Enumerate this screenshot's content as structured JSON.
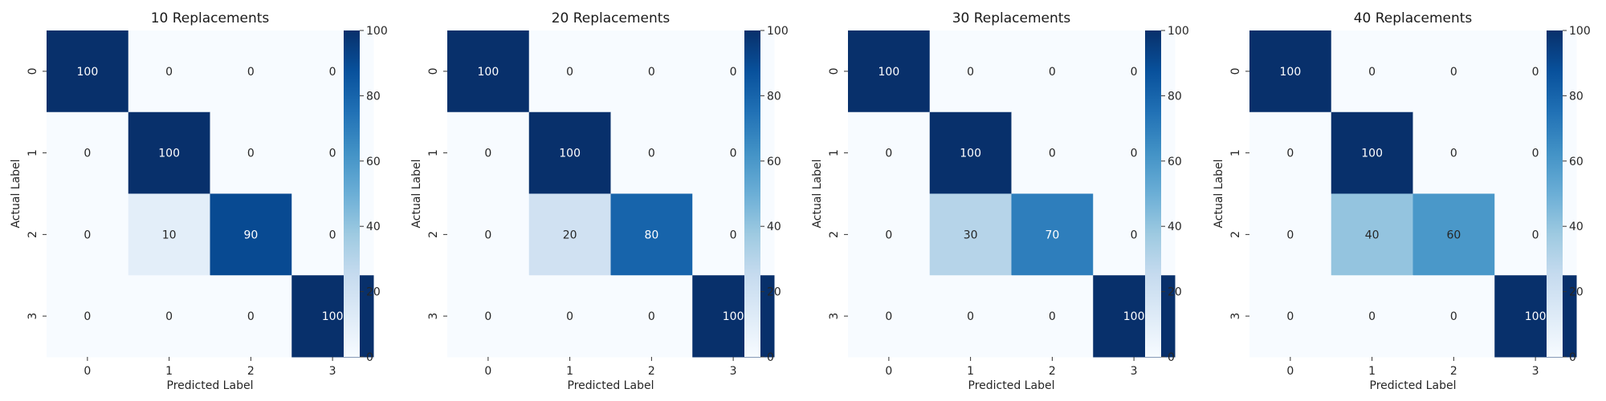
{
  "chart_data": [
    {
      "type": "heatmap",
      "title": "10 Replacements",
      "xlabel": "Predicted Label",
      "ylabel": "Actual Label",
      "x_categories": [
        "0",
        "1",
        "2",
        "3"
      ],
      "y_categories": [
        "0",
        "1",
        "2",
        "3"
      ],
      "values": [
        [
          100,
          0,
          0,
          0
        ],
        [
          0,
          100,
          0,
          0
        ],
        [
          0,
          10,
          90,
          0
        ],
        [
          0,
          0,
          0,
          100
        ]
      ],
      "colorscale": "Blues",
      "vmin": 0,
      "vmax": 100,
      "colorbar_ticks": [
        "0",
        "20",
        "40",
        "60",
        "80",
        "100"
      ]
    },
    {
      "type": "heatmap",
      "title": "20 Replacements",
      "xlabel": "Predicted Label",
      "ylabel": "Actual Label",
      "x_categories": [
        "0",
        "1",
        "2",
        "3"
      ],
      "y_categories": [
        "0",
        "1",
        "2",
        "3"
      ],
      "values": [
        [
          100,
          0,
          0,
          0
        ],
        [
          0,
          100,
          0,
          0
        ],
        [
          0,
          20,
          80,
          0
        ],
        [
          0,
          0,
          0,
          100
        ]
      ],
      "colorscale": "Blues",
      "vmin": 0,
      "vmax": 100,
      "colorbar_ticks": [
        "0",
        "20",
        "40",
        "60",
        "80",
        "100"
      ]
    },
    {
      "type": "heatmap",
      "title": "30 Replacements",
      "xlabel": "Predicted Label",
      "ylabel": "Actual Label",
      "x_categories": [
        "0",
        "1",
        "2",
        "3"
      ],
      "y_categories": [
        "0",
        "1",
        "2",
        "3"
      ],
      "values": [
        [
          100,
          0,
          0,
          0
        ],
        [
          0,
          100,
          0,
          0
        ],
        [
          0,
          30,
          70,
          0
        ],
        [
          0,
          0,
          0,
          100
        ]
      ],
      "colorscale": "Blues",
      "vmin": 0,
      "vmax": 100,
      "colorbar_ticks": [
        "0",
        "20",
        "40",
        "60",
        "80",
        "100"
      ]
    },
    {
      "type": "heatmap",
      "title": "40 Replacements",
      "xlabel": "Predicted Label",
      "ylabel": "Actual Label",
      "x_categories": [
        "0",
        "1",
        "2",
        "3"
      ],
      "y_categories": [
        "0",
        "1",
        "2",
        "3"
      ],
      "values": [
        [
          100,
          0,
          0,
          0
        ],
        [
          0,
          100,
          0,
          0
        ],
        [
          0,
          40,
          60,
          0
        ],
        [
          0,
          0,
          0,
          100
        ]
      ],
      "colorscale": "Blues",
      "vmin": 0,
      "vmax": 100,
      "colorbar_ticks": [
        "0",
        "20",
        "40",
        "60",
        "80",
        "100"
      ]
    }
  ]
}
